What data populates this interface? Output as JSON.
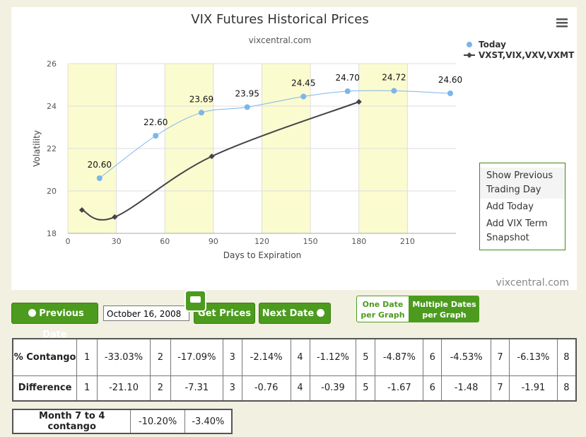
{
  "chart_data": {
    "type": "line",
    "title": "VIX Futures Historical Prices",
    "subtitle": "vixcentral.com",
    "credit": "vixcentral.com",
    "x_label": "Days to Expiration",
    "y_label": "Volatility",
    "xlim": [
      0,
      240
    ],
    "xticks": [
      0,
      30,
      60,
      90,
      120,
      150,
      180,
      210
    ],
    "ylim": [
      18,
      26
    ],
    "yticks": [
      18,
      20,
      22,
      24,
      26
    ],
    "grid": true,
    "legend": "top-right",
    "series": [
      {
        "name": "Today",
        "color": "#7cb5ec",
        "x": [
          19.6,
          54.3,
          82.6,
          110.9,
          145.7,
          173,
          201.7,
          236.5
        ],
        "values": [
          20.6,
          22.6,
          23.69,
          23.95,
          24.45,
          24.7,
          24.72,
          24.6
        ],
        "value_labels": [
          "20.60",
          "22.60",
          "23.69",
          "23.95",
          "24.45",
          "24.70",
          "24.72",
          "24.60"
        ]
      },
      {
        "name": "VXST,VIX,VXV,VXMT",
        "color": "#434348",
        "x": [
          8.7,
          29,
          89,
          180
        ],
        "values": [
          19.1,
          18.77,
          21.63,
          24.2
        ]
      }
    ]
  },
  "menu": [
    "Show Previous Trading Day",
    "Add Today",
    "Add VIX Term Snapshot"
  ],
  "controls": {
    "previous": "Previous Date",
    "date": "October 16, 2008",
    "get": "Get Prices",
    "next": "Next Date",
    "one": "One Date per Graph",
    "multiple": "Multiple Dates per Graph"
  },
  "contango_table": {
    "rows": [
      [
        "% Contango",
        "1",
        "-33.03%",
        "2",
        "-17.09%",
        "3",
        "-2.14%",
        "4",
        "-1.12%",
        "5",
        "-4.87%",
        "6",
        "-4.53%",
        "7",
        "-6.13%",
        "8"
      ],
      [
        "Difference",
        "1",
        "-21.10",
        "2",
        "-7.31",
        "3",
        "-0.76",
        "4",
        "-0.39",
        "5",
        "-1.67",
        "6",
        "-1.48",
        "7",
        "-1.91",
        "8"
      ]
    ]
  },
  "month_table": {
    "rows": [
      [
        "Month 7 to 4 contango",
        "-10.20%",
        "-3.40%"
      ]
    ]
  }
}
